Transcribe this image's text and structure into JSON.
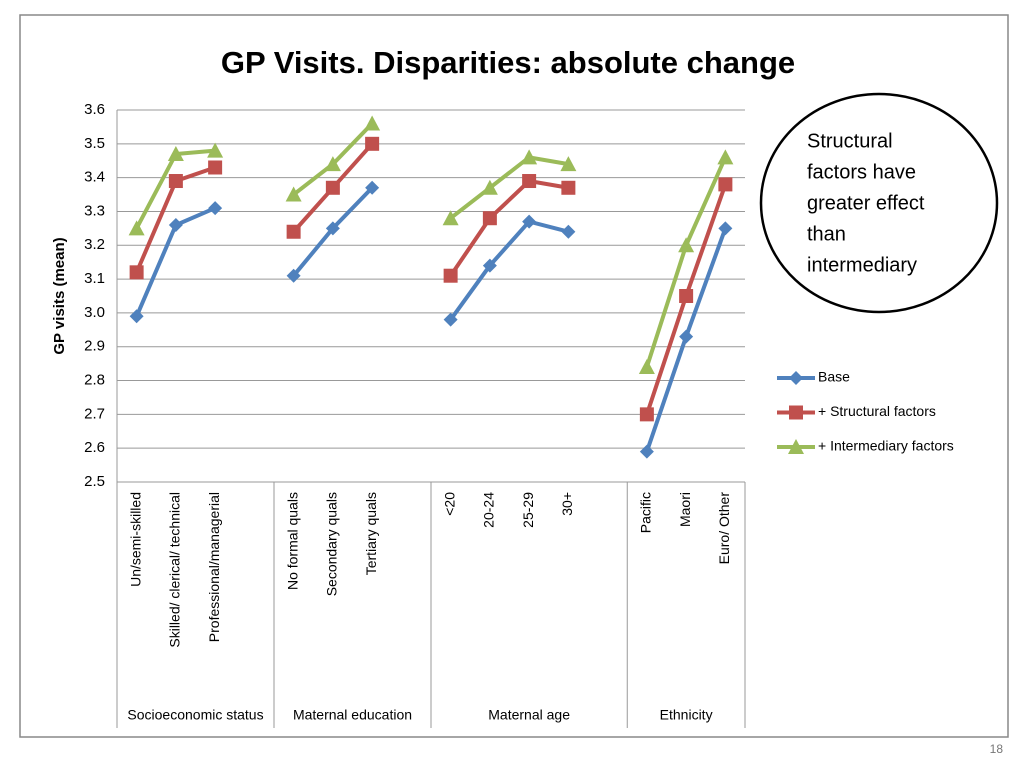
{
  "chart_data": {
    "type": "line",
    "title": "GP Visits. Disparities: absolute change",
    "y_label": "GP visits (mean)",
    "categories": [
      "Un/semi-skilled",
      "Skilled/ clerical/ technical",
      "Professional/managerial",
      null,
      "No formal quals",
      "Secondary quals",
      "Tertiary quals",
      null,
      "<20",
      "20-24",
      "25-29",
      "30+",
      null,
      "Pacific",
      "Maori",
      "Euro/ Other"
    ],
    "x_groups": [
      "Socioeconomic status",
      "Maternal education",
      "Maternal age",
      "Ethnicity"
    ],
    "series": [
      {
        "name": "Base",
        "color": "#4f81bd",
        "marker": "diamond",
        "values": [
          2.99,
          3.26,
          3.31,
          null,
          3.11,
          3.25,
          3.37,
          null,
          2.98,
          3.14,
          3.27,
          3.24,
          null,
          2.59,
          2.93,
          3.25
        ]
      },
      {
        "name": "+ Structural factors",
        "color": "#c0504d",
        "marker": "square",
        "values": [
          3.12,
          3.39,
          3.43,
          null,
          3.24,
          3.37,
          3.5,
          null,
          3.11,
          3.28,
          3.39,
          3.37,
          null,
          2.7,
          3.05,
          3.38
        ]
      },
      {
        "name": "+ Intermediary factors",
        "color": "#9bbb59",
        "marker": "triangle",
        "values": [
          3.25,
          3.47,
          3.48,
          null,
          3.35,
          3.44,
          3.56,
          null,
          3.28,
          3.37,
          3.46,
          3.44,
          null,
          2.84,
          3.2,
          3.46
        ]
      }
    ],
    "ylim": [
      2.5,
      3.6
    ],
    "yticks": [
      2.5,
      2.6,
      2.7,
      2.8,
      2.9,
      {
        "value": 3,
        "label": "3.0"
      },
      3.1,
      3.2,
      3.3,
      3.4,
      3.5,
      3.6
    ],
    "grid": true,
    "legend": "right",
    "annotation": {
      "lines": [
        {
          "text": "Structural",
          "color": "#c0504d"
        },
        {
          "text": "factors have",
          "color": "#000000"
        },
        {
          "text": "greater effect",
          "color": "#000000"
        },
        {
          "text": "than",
          "color": "#000000"
        },
        {
          "text": "intermediary",
          "color": "#00b050"
        }
      ]
    }
  },
  "page_number": "18"
}
